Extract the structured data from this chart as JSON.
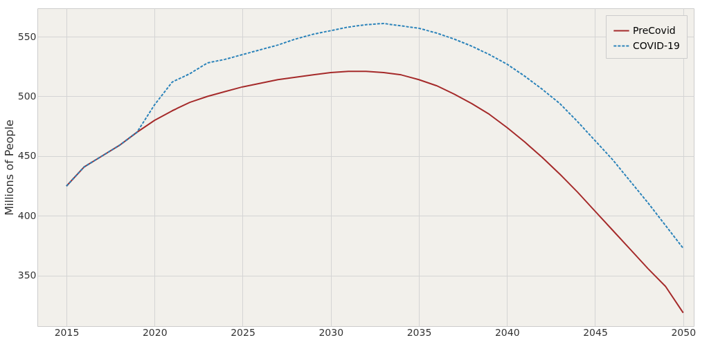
{
  "chart_data": {
    "type": "line",
    "ylabel": "Millions of People",
    "x": [
      2015,
      2016,
      2017,
      2018,
      2019,
      2020,
      2021,
      2022,
      2023,
      2024,
      2025,
      2026,
      2027,
      2028,
      2029,
      2030,
      2031,
      2032,
      2033,
      2034,
      2035,
      2036,
      2037,
      2038,
      2039,
      2040,
      2041,
      2042,
      2043,
      2044,
      2045,
      2046,
      2047,
      2048,
      2049,
      2050
    ],
    "series": [
      {
        "name": "PreCovid",
        "color": "#a52a2a",
        "line_style": "solid",
        "values": [
          425,
          441,
          450,
          459,
          470,
          480,
          488,
          495,
          500,
          504,
          508,
          511,
          514,
          516,
          518,
          520,
          521,
          521,
          520,
          518,
          514,
          509,
          502,
          494,
          485,
          474,
          462,
          449,
          435,
          420,
          404,
          388,
          372,
          356,
          341,
          319
        ]
      },
      {
        "name": "COVID-19",
        "color": "#2b83ba",
        "line_style": "dashed",
        "values": [
          425,
          441,
          450,
          459,
          470,
          493,
          512,
          519,
          528,
          531,
          535,
          539,
          543,
          548,
          552,
          555,
          558,
          560,
          561,
          559,
          557,
          553,
          548,
          542,
          535,
          527,
          517,
          506,
          494,
          479,
          463,
          447,
          429,
          411,
          392,
          373
        ]
      }
    ],
    "xlim": [
      2013.35,
      2050.6
    ],
    "xticks": [
      2015,
      2020,
      2025,
      2030,
      2035,
      2040,
      2045,
      2050
    ],
    "ylim": [
      307.8,
      573.7
    ],
    "yticks": [
      350,
      400,
      450,
      500,
      550
    ],
    "grid": true,
    "legend": "top right"
  }
}
